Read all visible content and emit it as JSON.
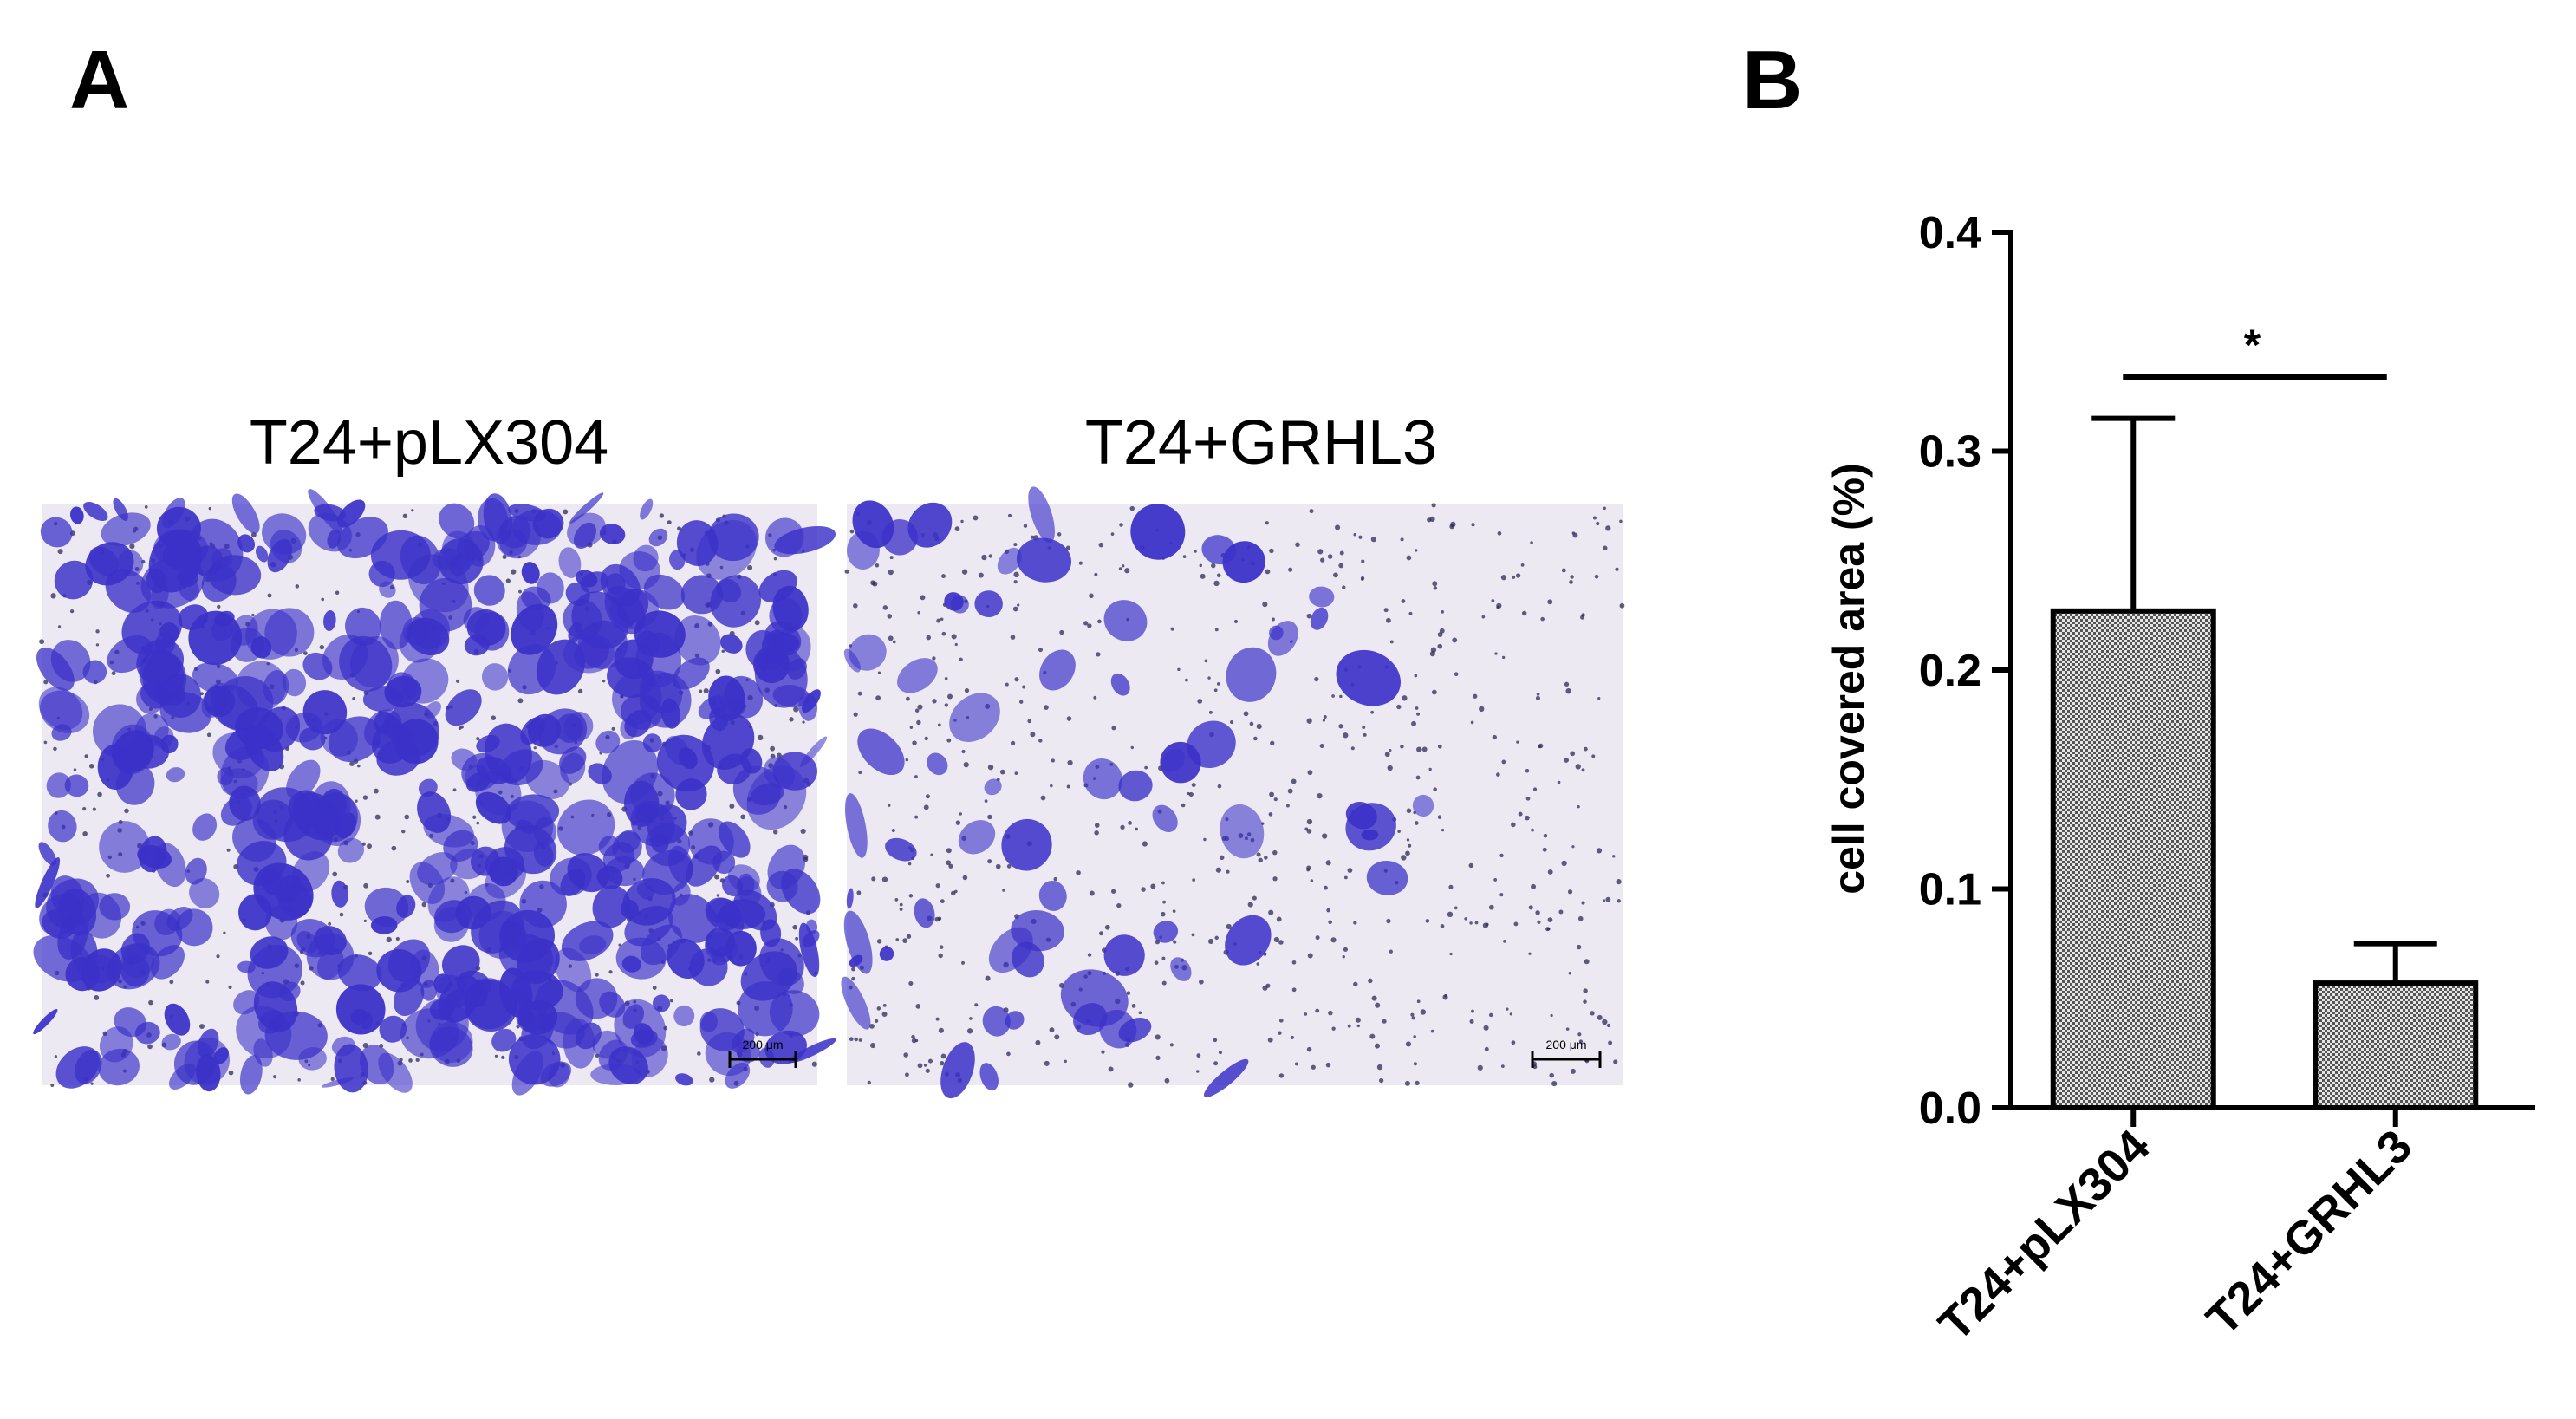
{
  "panels": {
    "a": {
      "letter": "A",
      "images": [
        {
          "title": "T24+pLX304",
          "scale_bar": "200 μm",
          "stain_color": "#3b31c8"
        },
        {
          "title": "T24+GRHL3",
          "scale_bar": "200 μm",
          "stain_color": "#3b31c8"
        }
      ]
    },
    "b": {
      "letter": "B"
    }
  },
  "chart_data": {
    "type": "bar",
    "categories": [
      "T24+pLX304",
      "T24+GRHL3"
    ],
    "values": [
      0.227,
      0.057
    ],
    "error": [
      0.088,
      0.018
    ],
    "ylabel": "cell covered area (%)",
    "xlabel": "",
    "ylim": [
      0,
      0.4
    ],
    "yticks": [
      0.0,
      0.1,
      0.2,
      0.3,
      0.4
    ],
    "ytick_labels": [
      "0.0",
      "0.1",
      "0.2",
      "0.3",
      "0.4"
    ],
    "significance": {
      "label": "*",
      "between": [
        "T24+pLX304",
        "T24+GRHL3"
      ]
    },
    "bar_fill": "crosshatch gray",
    "colors": {
      "bar_fill": "#b8b8b8",
      "bar_edge": "#000000"
    },
    "grid": false,
    "legend": "none"
  }
}
